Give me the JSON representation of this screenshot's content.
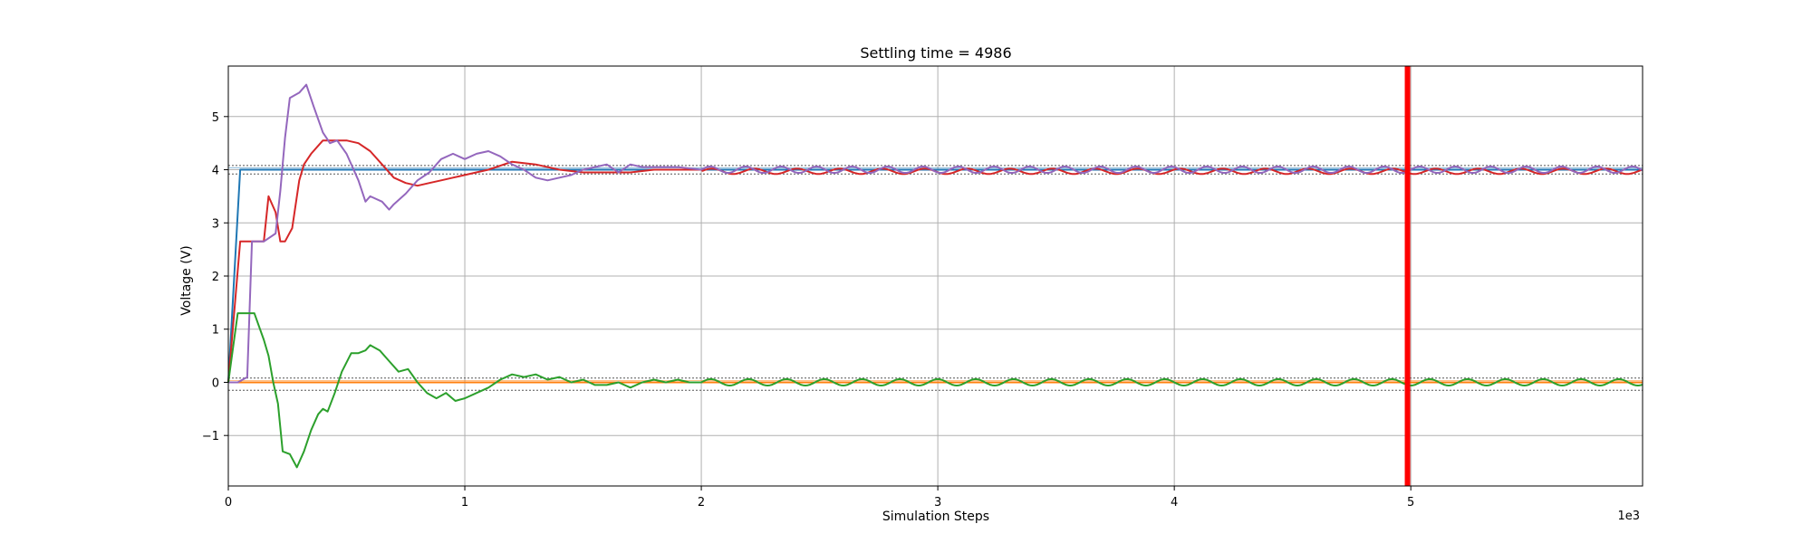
{
  "chart_data": {
    "type": "line",
    "title": "Settling time = 4986",
    "xlabel": "Simulation Steps",
    "ylabel": "Voltage (V)",
    "x_offset_label": "1e3",
    "xlim": [
      0,
      5980
    ],
    "ylim": [
      -1.95,
      5.95
    ],
    "xticks": [
      0,
      1000,
      2000,
      3000,
      4000,
      5000
    ],
    "xtick_labels": [
      "0",
      "1",
      "2",
      "3",
      "4",
      "5"
    ],
    "yticks": [
      -1,
      0,
      1,
      2,
      3,
      4,
      5
    ],
    "ytick_labels": [
      "−1",
      "0",
      "1",
      "2",
      "3",
      "4",
      "5"
    ],
    "grid": true,
    "settling_time": 4986,
    "settling_line_color": "#ff0000",
    "tolerance_bands": [
      {
        "center": 4,
        "lower": 3.92,
        "upper": 4.08,
        "color": "#1f77b4",
        "dash_color": "#555555"
      },
      {
        "center": 0,
        "lower": -0.15,
        "upper": 0.08,
        "color": "#ff7f0e",
        "dash_color": "#555555"
      }
    ],
    "series": [
      {
        "color": "#1f77b4",
        "x": [
          0,
          50,
          60,
          5980
        ],
        "y": [
          0,
          4,
          4,
          4
        ]
      },
      {
        "color": "#ff7f0e",
        "x": [
          0,
          5980
        ],
        "y": [
          0,
          0
        ]
      },
      {
        "color": "#d62728",
        "x": [
          0,
          50,
          150,
          170,
          200,
          220,
          240,
          270,
          300,
          320,
          350,
          400,
          450,
          500,
          550,
          600,
          650,
          700,
          750,
          800,
          850,
          900,
          950,
          1000,
          1100,
          1200,
          1300,
          1400,
          1500,
          1600,
          1700,
          1800,
          1900,
          2000
        ],
        "y": [
          0,
          2.65,
          2.65,
          3.5,
          3.2,
          2.65,
          2.65,
          2.9,
          3.8,
          4.1,
          4.3,
          4.55,
          4.55,
          4.55,
          4.5,
          4.35,
          4.1,
          3.85,
          3.75,
          3.7,
          3.75,
          3.8,
          3.85,
          3.9,
          4.0,
          4.15,
          4.1,
          4.0,
          3.95,
          3.95,
          3.95,
          4.0,
          4.0,
          4.0
        ],
        "osc_period": 180,
        "osc_amp": 0.05,
        "osc_center": 3.97
      },
      {
        "color": "#9467bd",
        "x": [
          0,
          40,
          80,
          100,
          150,
          200,
          220,
          240,
          260,
          300,
          330,
          360,
          400,
          430,
          460,
          500,
          550,
          580,
          600,
          650,
          680,
          700,
          750,
          800,
          850,
          900,
          950,
          1000,
          1050,
          1100,
          1150,
          1200,
          1250,
          1300,
          1350,
          1400,
          1450,
          1500,
          1550,
          1600,
          1650,
          1700,
          1750,
          1800,
          1900,
          2000
        ],
        "y": [
          0,
          0,
          0.1,
          2.65,
          2.65,
          2.8,
          3.6,
          4.6,
          5.35,
          5.45,
          5.6,
          5.2,
          4.7,
          4.5,
          4.55,
          4.3,
          3.8,
          3.4,
          3.5,
          3.4,
          3.25,
          3.35,
          3.55,
          3.8,
          3.95,
          4.2,
          4.3,
          4.2,
          4.3,
          4.35,
          4.25,
          4.1,
          4.0,
          3.85,
          3.8,
          3.85,
          3.9,
          4.0,
          4.05,
          4.1,
          3.95,
          4.1,
          4.05,
          4.05,
          4.05,
          4.0
        ],
        "osc_period": 150,
        "osc_amp": 0.06,
        "osc_center": 4.0
      },
      {
        "color": "#2ca02c",
        "x": [
          0,
          40,
          80,
          110,
          150,
          170,
          190,
          210,
          230,
          260,
          290,
          320,
          350,
          380,
          400,
          420,
          450,
          480,
          520,
          550,
          580,
          600,
          640,
          680,
          720,
          760,
          800,
          840,
          880,
          920,
          960,
          1000,
          1050,
          1100,
          1150,
          1200,
          1250,
          1300,
          1350,
          1400,
          1450,
          1500,
          1550,
          1600,
          1650,
          1700,
          1750,
          1800,
          1850,
          1900,
          1950,
          2000
        ],
        "y": [
          0,
          1.3,
          1.3,
          1.3,
          0.8,
          0.5,
          0,
          -0.4,
          -1.3,
          -1.35,
          -1.6,
          -1.3,
          -0.9,
          -0.6,
          -0.5,
          -0.55,
          -0.2,
          0.2,
          0.55,
          0.55,
          0.6,
          0.7,
          0.6,
          0.4,
          0.2,
          0.25,
          0,
          -0.2,
          -0.3,
          -0.2,
          -0.35,
          -0.3,
          -0.2,
          -0.1,
          0.05,
          0.15,
          0.1,
          0.15,
          0.05,
          0.1,
          0,
          0.05,
          -0.05,
          -0.05,
          0,
          -0.1,
          0,
          0.05,
          0,
          0.05,
          0,
          0
        ],
        "osc_period": 160,
        "osc_amp": 0.06,
        "osc_center": 0.0
      }
    ]
  }
}
